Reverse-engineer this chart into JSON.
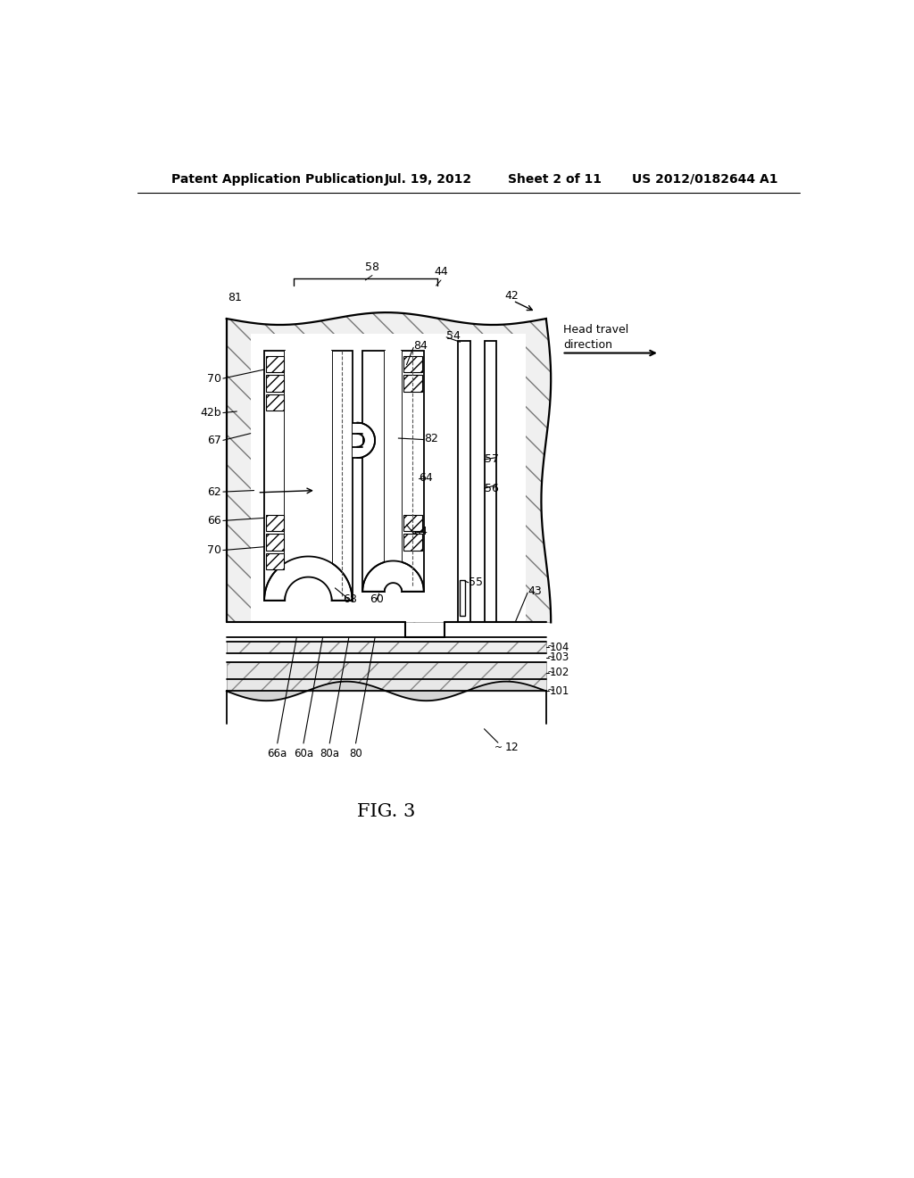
{
  "bg_color": "#ffffff",
  "header_text": "Patent Application Publication",
  "header_date": "Jul. 19, 2012",
  "header_sheet": "Sheet 2 of 11",
  "header_patent": "US 2012/0182644 A1",
  "figure_label": "FIG. 3",
  "line_color": "#000000"
}
